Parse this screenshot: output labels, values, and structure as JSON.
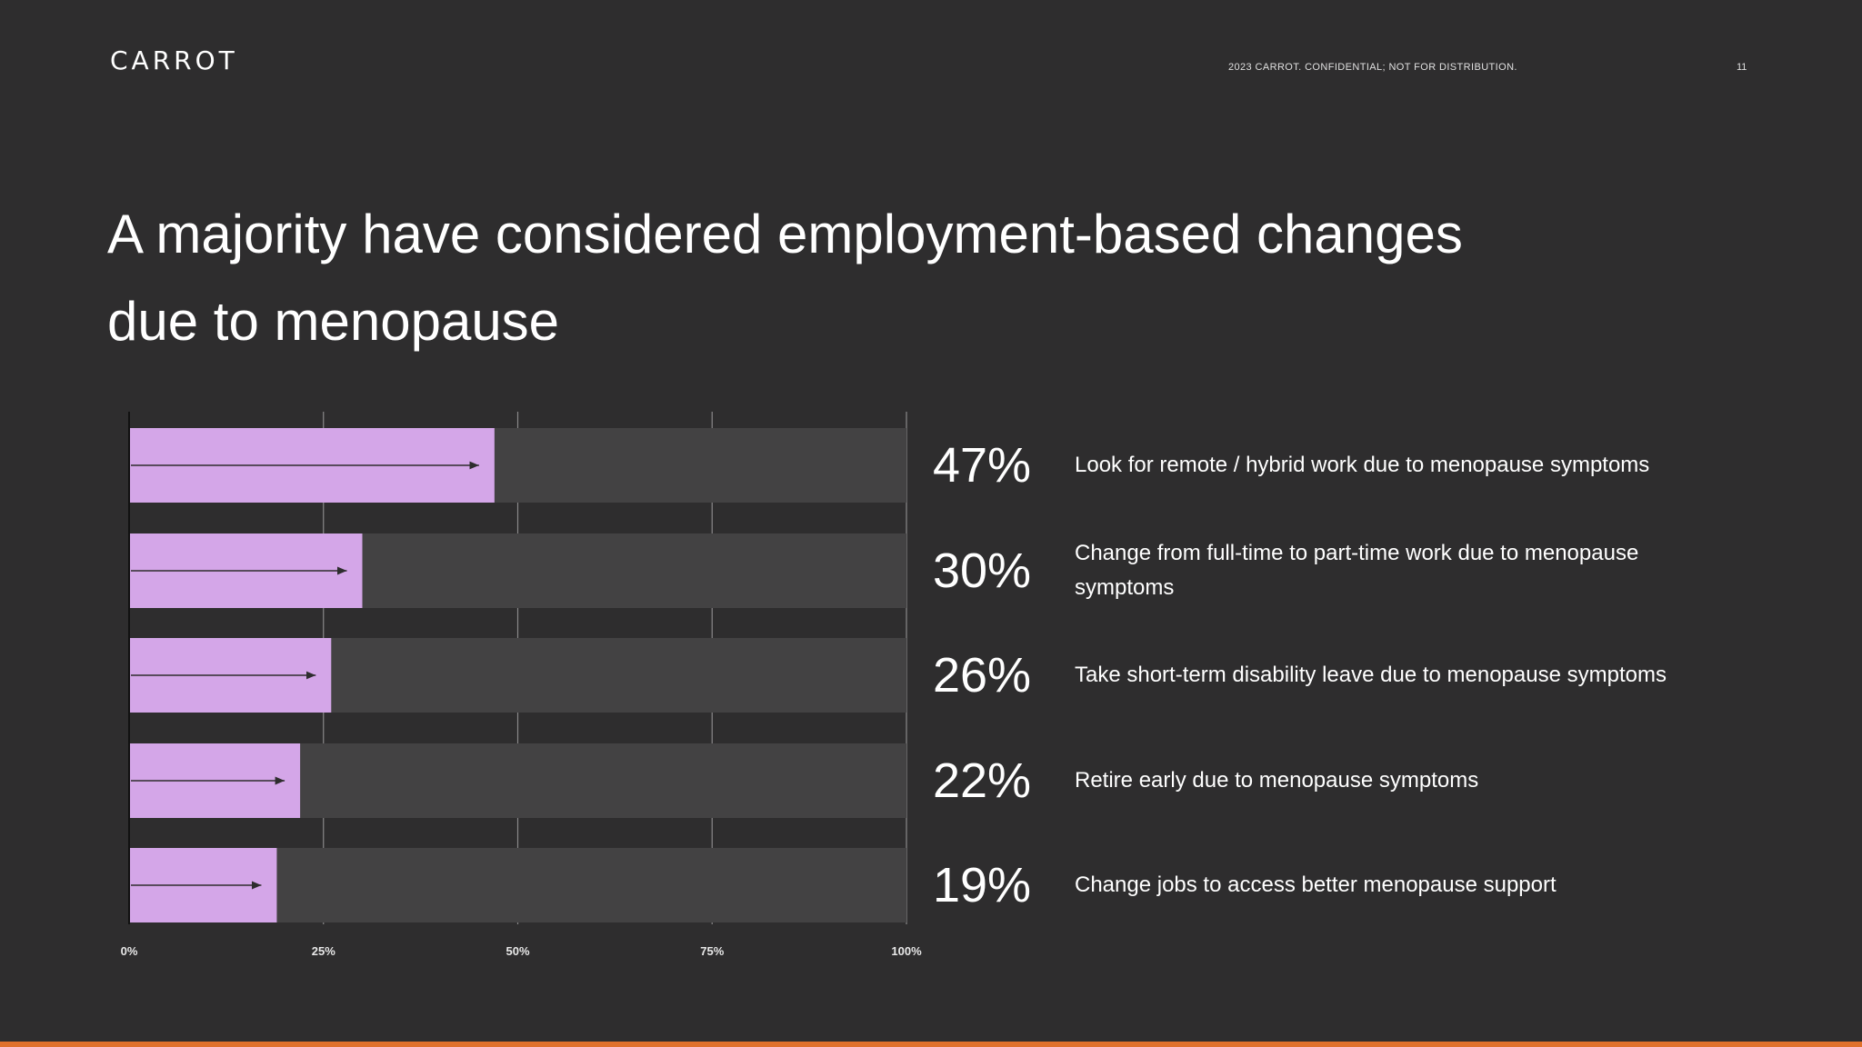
{
  "header": {
    "logo": "CARROT",
    "confidential": "2023 CARROT. CONFIDENTIAL; NOT FOR DISTRIBUTION.",
    "page_number": "11"
  },
  "title": "A majority have considered employment-based changes due to menopause",
  "colors": {
    "background": "#2e2d2e",
    "bar_fill": "#d4a6e8",
    "bar_track": "#434243",
    "accent_footer": "#e0712c"
  },
  "chart_data": {
    "type": "bar",
    "orientation": "horizontal",
    "xlim": [
      0,
      100
    ],
    "x_ticks": [
      "0%",
      "25%",
      "50%",
      "75%",
      "100%"
    ],
    "grid": true,
    "categories": [
      "Look for remote / hybrid work due to menopause symptoms",
      "Change from full-time to part-time work due to menopause symptoms",
      "Take short-term disability leave due to menopause symptoms",
      "Retire early due to menopause symptoms",
      "Change jobs to access better menopause support"
    ],
    "values": [
      47,
      30,
      26,
      22,
      19
    ],
    "value_labels": [
      "47%",
      "30%",
      "26%",
      "22%",
      "19%"
    ]
  }
}
